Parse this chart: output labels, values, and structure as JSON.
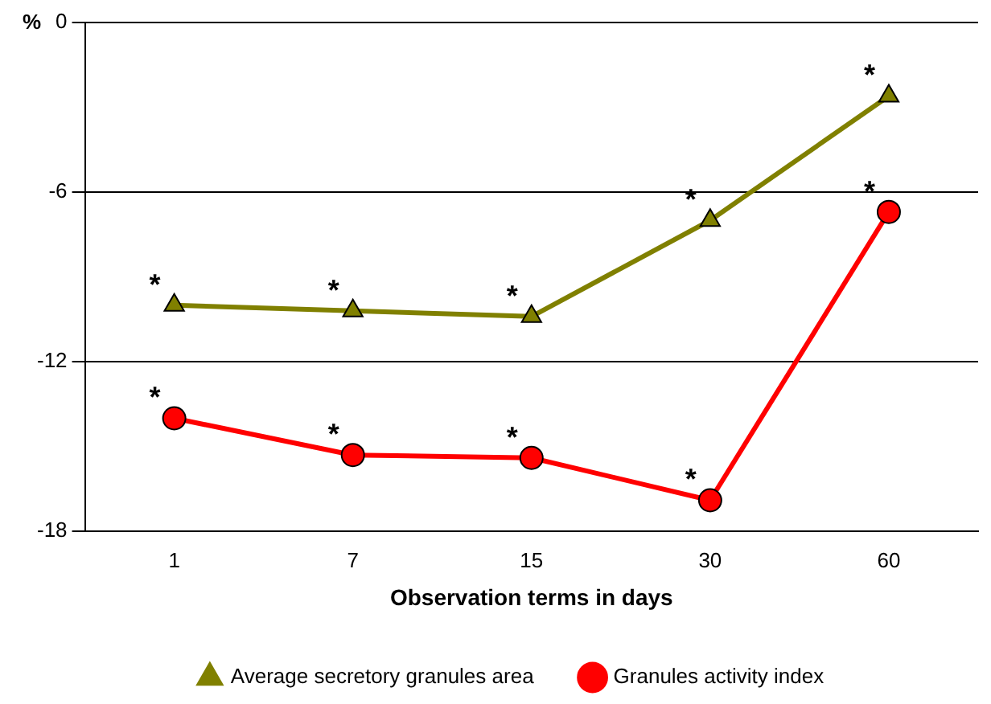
{
  "chart_data": {
    "type": "line",
    "xlabel": "Observation terms in days",
    "ylabel": "%",
    "categories": [
      "1",
      "7",
      "15",
      "30",
      "60"
    ],
    "series": [
      {
        "name": "Average secretory granules area",
        "color": "#808000",
        "marker": "triangle",
        "values": [
          -10.0,
          -10.2,
          -10.4,
          -7.0,
          -2.6
        ]
      },
      {
        "name": "Granules activity index",
        "color": "#ff0000",
        "marker": "circle",
        "values": [
          -14.0,
          -15.3,
          -15.4,
          -16.9,
          -6.7
        ]
      }
    ],
    "ylim": [
      -18,
      0
    ],
    "yticks": [
      -18,
      -12,
      -6,
      0
    ],
    "grid": "y",
    "legend": "bottom",
    "line_style": "solid",
    "annotations": [
      {
        "text": "*",
        "x": "1",
        "y": -10.0
      },
      {
        "text": "*",
        "x": "7",
        "y": -10.2
      },
      {
        "text": "*",
        "x": "15",
        "y": -10.4
      },
      {
        "text": "*",
        "x": "30",
        "y": -7.0
      },
      {
        "text": "*",
        "x": "60",
        "y": -2.6
      },
      {
        "text": "*",
        "x": "1",
        "y": -14.0
      },
      {
        "text": "*",
        "x": "7",
        "y": -15.3
      },
      {
        "text": "*",
        "x": "15",
        "y": -15.4
      },
      {
        "text": "*",
        "x": "30",
        "y": -16.9
      },
      {
        "text": "*",
        "x": "60",
        "y": -6.7
      }
    ]
  }
}
